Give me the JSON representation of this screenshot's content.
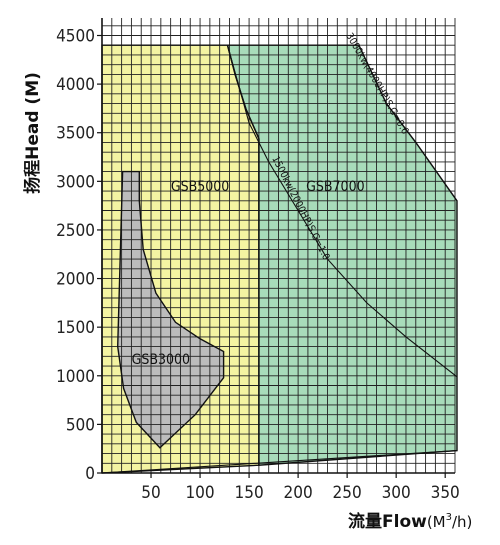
{
  "chart_data": {
    "type": "area",
    "title": "",
    "xlabel": "流量Flow",
    "xlabel_unit_prefix": "(M",
    "xlabel_unit_sup": "3",
    "xlabel_unit_suffix": "/h)",
    "ylabel": "扬程Head (M)",
    "xlim": [
      0,
      360
    ],
    "ylim": [
      0,
      4500
    ],
    "x_ticks": [
      50,
      100,
      150,
      200,
      250,
      300,
      350
    ],
    "y_ticks": [
      0,
      500,
      1000,
      1500,
      2000,
      2500,
      3000,
      3500,
      4000,
      4500
    ],
    "grid": true,
    "colors": {
      "gsb5000": "#f4f4a2",
      "gsb7000": "#a8dcba",
      "gsb3000": "#bcbcbc",
      "grid": "#222222",
      "outline": "#111111"
    },
    "regions": [
      {
        "name": "GSB5000",
        "polygon": [
          [
            0,
            0
          ],
          [
            0,
            4400
          ],
          [
            128,
            4400
          ],
          [
            136,
            4090
          ],
          [
            147,
            3740
          ],
          [
            160,
            3440
          ],
          [
            160,
            80
          ],
          [
            0,
            0
          ]
        ]
      },
      {
        "name": "GSB7000",
        "polygon": [
          [
            160,
            80
          ],
          [
            160,
            3440
          ],
          [
            147,
            3740
          ],
          [
            136,
            4090
          ],
          [
            128,
            4400
          ],
          [
            262,
            4400
          ],
          [
            290,
            3800
          ],
          [
            320,
            3400
          ],
          [
            362,
            2800
          ],
          [
            362,
            230
          ],
          [
            160,
            80
          ]
        ]
      },
      {
        "name": "GSB3000",
        "polygon": [
          [
            21,
            3100
          ],
          [
            38,
            3100
          ],
          [
            38,
            2800
          ],
          [
            42,
            2300
          ],
          [
            55,
            1850
          ],
          [
            75,
            1550
          ],
          [
            100,
            1380
          ],
          [
            124,
            1250
          ],
          [
            124,
            980
          ],
          [
            95,
            600
          ],
          [
            59,
            260
          ],
          [
            35,
            520
          ],
          [
            22,
            870
          ],
          [
            16,
            1300
          ],
          [
            21,
            3100
          ]
        ]
      }
    ],
    "curves": [
      {
        "name": "3000kw(4000HP) S.G=0.6",
        "points": [
          [
            262,
            4400
          ],
          [
            290,
            3800
          ],
          [
            320,
            3400
          ],
          [
            362,
            2800
          ]
        ]
      },
      {
        "name": "1500kw(2000HP) S.G=1.0",
        "points": [
          [
            128,
            4400
          ],
          [
            150,
            3600
          ],
          [
            170,
            3200
          ],
          [
            200,
            2700
          ],
          [
            230,
            2200
          ],
          [
            270,
            1750
          ],
          [
            310,
            1400
          ],
          [
            362,
            990
          ]
        ]
      },
      {
        "name": "",
        "points": [
          [
            0,
            0
          ],
          [
            362,
            230
          ]
        ]
      }
    ],
    "labels": [
      {
        "text": "GSB5000",
        "x": 100,
        "y": 2900
      },
      {
        "text": "GSB7000",
        "x": 238,
        "y": 2900
      },
      {
        "text": "GSB3000",
        "x": 60,
        "y": 1120
      },
      {
        "text": "3000kw(4000HP)S.G=0.6",
        "x": 278,
        "y": 3990,
        "angle": 60
      },
      {
        "text": "1500kw(2000HP)S.G=1.0",
        "x": 200,
        "y": 2710,
        "angle": 63
      }
    ]
  }
}
